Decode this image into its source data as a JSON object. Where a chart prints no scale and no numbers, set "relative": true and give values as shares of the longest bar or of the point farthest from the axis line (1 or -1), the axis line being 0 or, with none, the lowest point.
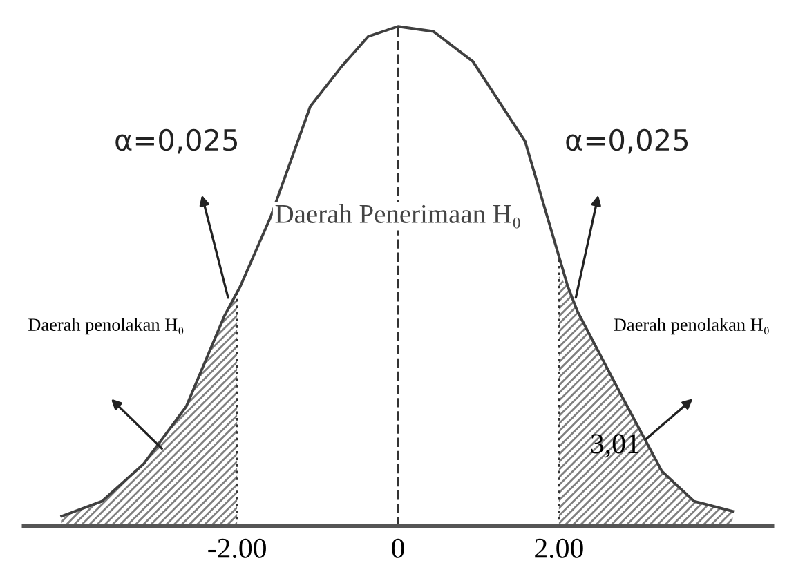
{
  "chart_data": {
    "type": "line",
    "relative": true,
    "series": [
      {
        "color": "#404040",
        "x": [
          -4.18,
          -3.68,
          -3.16,
          -2.63,
          -2.16,
          -1.96,
          -1.58,
          -1.09,
          -0.7,
          -0.37,
          0.0,
          0.44,
          0.93,
          1.58,
          2.11,
          2.23,
          2.75,
          3.28,
          3.68,
          4.16
        ],
        "values": [
          0.02,
          0.05,
          0.125,
          0.24,
          0.42,
          0.48,
          0.62,
          0.84,
          0.92,
          0.98,
          1,
          0.99,
          0.93,
          0.77,
          0.48,
          0.43,
          0.27,
          0.11,
          0.05,
          0.03
        ]
      },
      {
        "type": "area",
        "color": "#808080",
        "x": [
          -4.18,
          -3.68,
          -3.16,
          -2.63,
          -2.16,
          -2.0
        ],
        "values": [
          0.02,
          0.05,
          0.125,
          0.24,
          0.42,
          0.47
        ]
      },
      {
        "type": "area",
        "color": "#808080",
        "x": [
          2.0,
          2.11,
          2.23,
          2.75,
          3.28,
          3.68,
          4.16
        ],
        "values": [
          0.5,
          0.48,
          0.43,
          0.27,
          0.11,
          0.05,
          0.03
        ]
      }
    ],
    "xlim": [
      -4.65,
      4.65
    ],
    "xticks": [
      {
        "value": -2,
        "label": "-2.00"
      },
      0,
      {
        "value": 2,
        "label": "2.00"
      }
    ],
    "tick_labels": "x",
    "ref_lines": [
      {
        "axis": "x",
        "value": -2,
        "line_style": "dotted"
      },
      {
        "axis": "x",
        "value": 0,
        "line_style": "dashed"
      },
      {
        "axis": "x",
        "value": 2,
        "line_style": "dotted"
      }
    ],
    "annotations": [
      "α=0,025",
      "α=0,025",
      "Daerah Penerimaan H₀",
      "Daerah penolakan H₀",
      "Daerah penolakan H₀",
      "3,01"
    ],
    "grid": false,
    "marker": "none",
    "line_style": "solid"
  }
}
